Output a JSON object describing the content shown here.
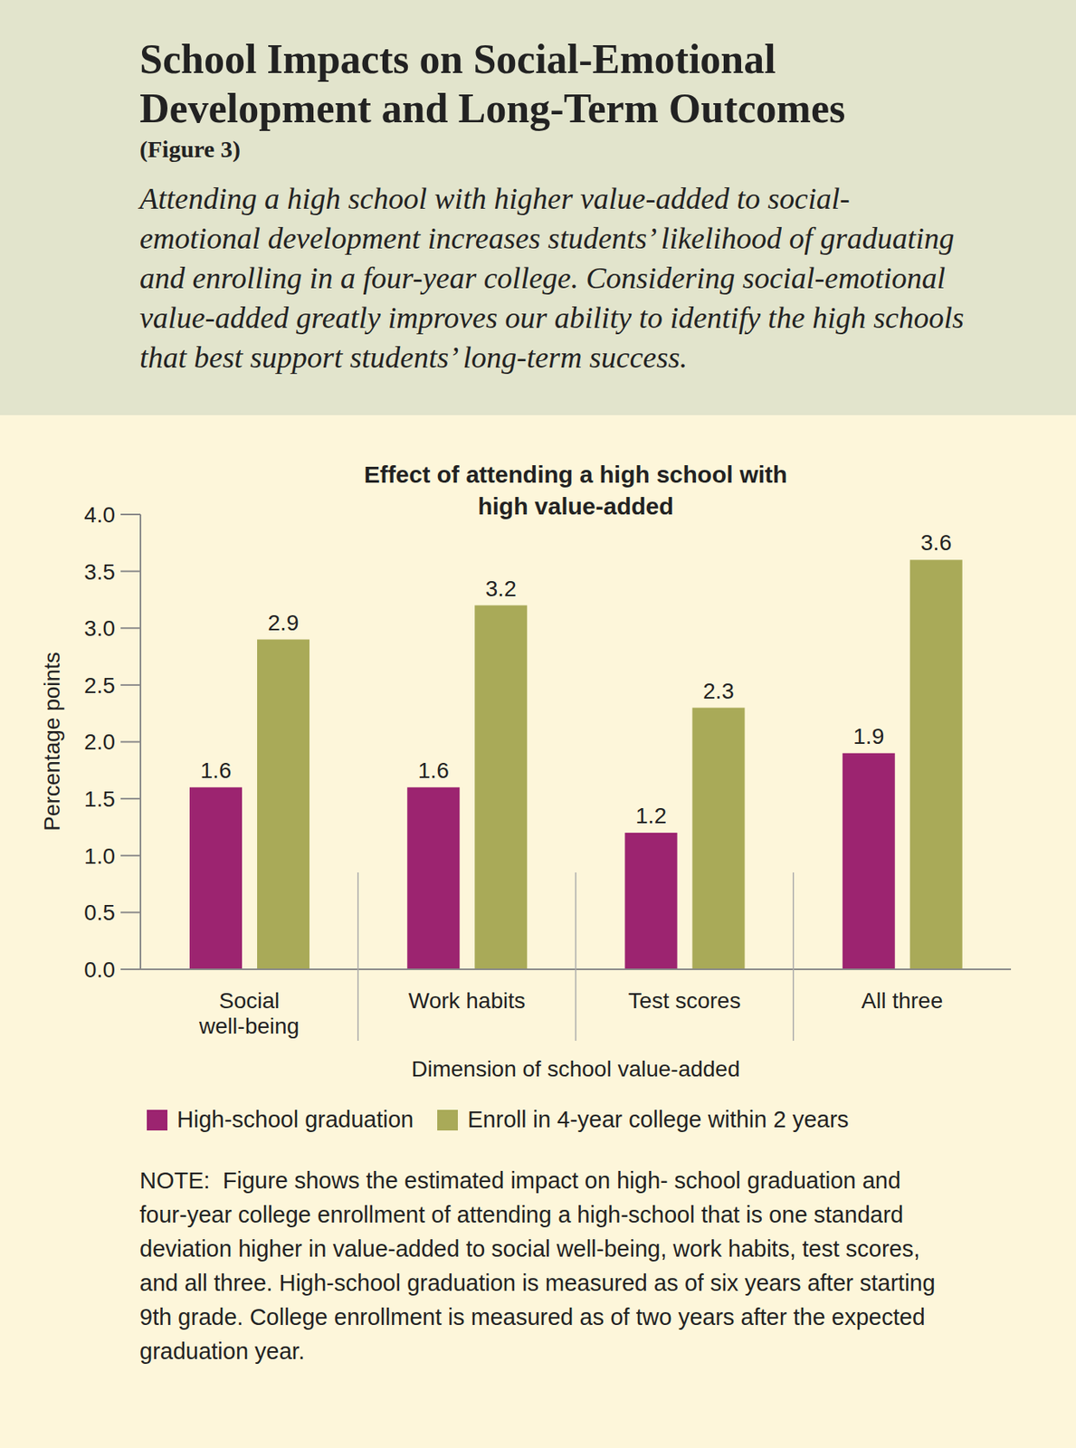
{
  "header": {
    "title": "School Impacts on Social-Emotional Development and Long-Term Outcomes",
    "figure": "(Figure 3)",
    "subtitle": "Attending a high school with higher value-added to social-emotional development increases students’ likelihood of graduating and enrolling in a four-year college. Considering social-emotional value-added greatly improves our ability to identify the high schools that best support students’ long-term success."
  },
  "chart_data": {
    "type": "bar",
    "title": "Effect of attending a high school with high value-added",
    "x_label": "Dimension of school value-added",
    "y_label": "Percentage points",
    "categories": [
      "Social well-being",
      "Work habits",
      "Test scores",
      "All three"
    ],
    "series": [
      {
        "name": "High-school graduation",
        "color": "#9c2470",
        "values": [
          1.6,
          1.6,
          1.2,
          1.9
        ]
      },
      {
        "name": "Enroll in 4-year college within 2 years",
        "color": "#a9aa58",
        "values": [
          2.9,
          3.2,
          2.3,
          3.6
        ]
      }
    ],
    "ylim": [
      0,
      4
    ],
    "yticks": [
      {
        "value": 0,
        "label": "0.0"
      },
      0.5,
      {
        "value": 1,
        "label": "1.0"
      },
      1.5,
      {
        "value": 2,
        "label": "2.0"
      },
      2.5,
      {
        "value": 3,
        "label": "3.0"
      },
      3.5,
      {
        "value": 4,
        "label": "4.0"
      }
    ],
    "data_labels": true,
    "grid": false,
    "legend": "bottom"
  },
  "note": "NOTE:  Figure shows the estimated impact on high- school graduation and four-year college enrollment of attending a high-school that is one standard deviation higher in value-added to social well-being, work habits, test scores, and all three. High-school graduation is measured as of six years after starting 9th grade. College enrollment is measured as of two years after the expected graduation year."
}
